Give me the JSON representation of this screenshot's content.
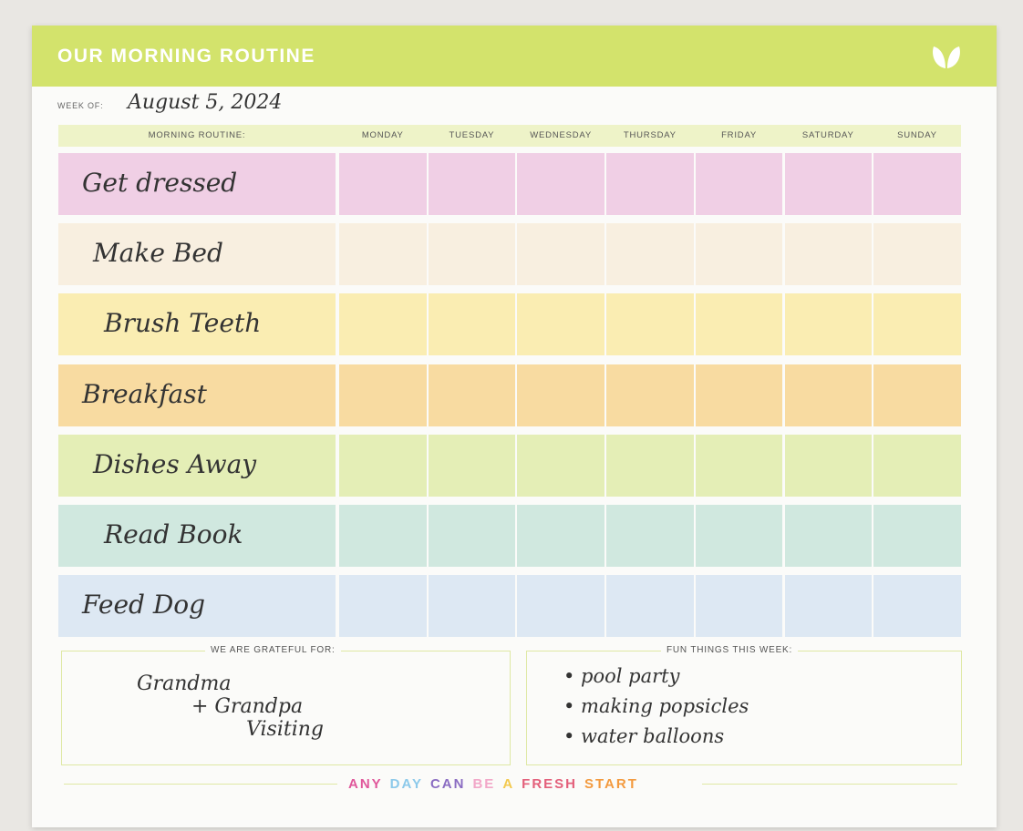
{
  "header": {
    "title": "OUR MORNING ROUTINE"
  },
  "week": {
    "label": "WEEK OF:",
    "date": "August 5, 2024"
  },
  "table": {
    "columns": [
      "MORNING ROUTINE:",
      "MONDAY",
      "TUESDAY",
      "WEDNESDAY",
      "THURSDAY",
      "FRIDAY",
      "SATURDAY",
      "SUNDAY"
    ],
    "rows": [
      {
        "task": "Get dressed",
        "color": "#f0cfe5"
      },
      {
        "task": "Make Bed",
        "color": "#f8efe0"
      },
      {
        "task": "Brush Teeth",
        "color": "#faedb2"
      },
      {
        "task": "Breakfast",
        "color": "#f8dba1"
      },
      {
        "task": "Dishes Away",
        "color": "#e4eeb6"
      },
      {
        "task": "Read Book",
        "color": "#d0e8df"
      },
      {
        "task": "Feed Dog",
        "color": "#dde8f3"
      }
    ]
  },
  "grateful": {
    "title": "WE ARE GRATEFUL FOR:",
    "lines": [
      "Grandma",
      "+ Grandpa",
      "Visiting"
    ]
  },
  "fun": {
    "title": "FUN THINGS THIS WEEK:",
    "lines": [
      "• pool party",
      "• making popsicles",
      "• water balloons"
    ]
  },
  "footer": {
    "words": [
      {
        "text": "ANY",
        "color": "#e0579b"
      },
      {
        "text": "DAY",
        "color": "#8cc9ea"
      },
      {
        "text": "CAN",
        "color": "#8a6cc2"
      },
      {
        "text": "BE",
        "color": "#f2a7c8"
      },
      {
        "text": "A",
        "color": "#f3c94e"
      },
      {
        "text": "FRESH",
        "color": "#e35f7a"
      },
      {
        "text": "START",
        "color": "#f39a3e"
      }
    ]
  }
}
